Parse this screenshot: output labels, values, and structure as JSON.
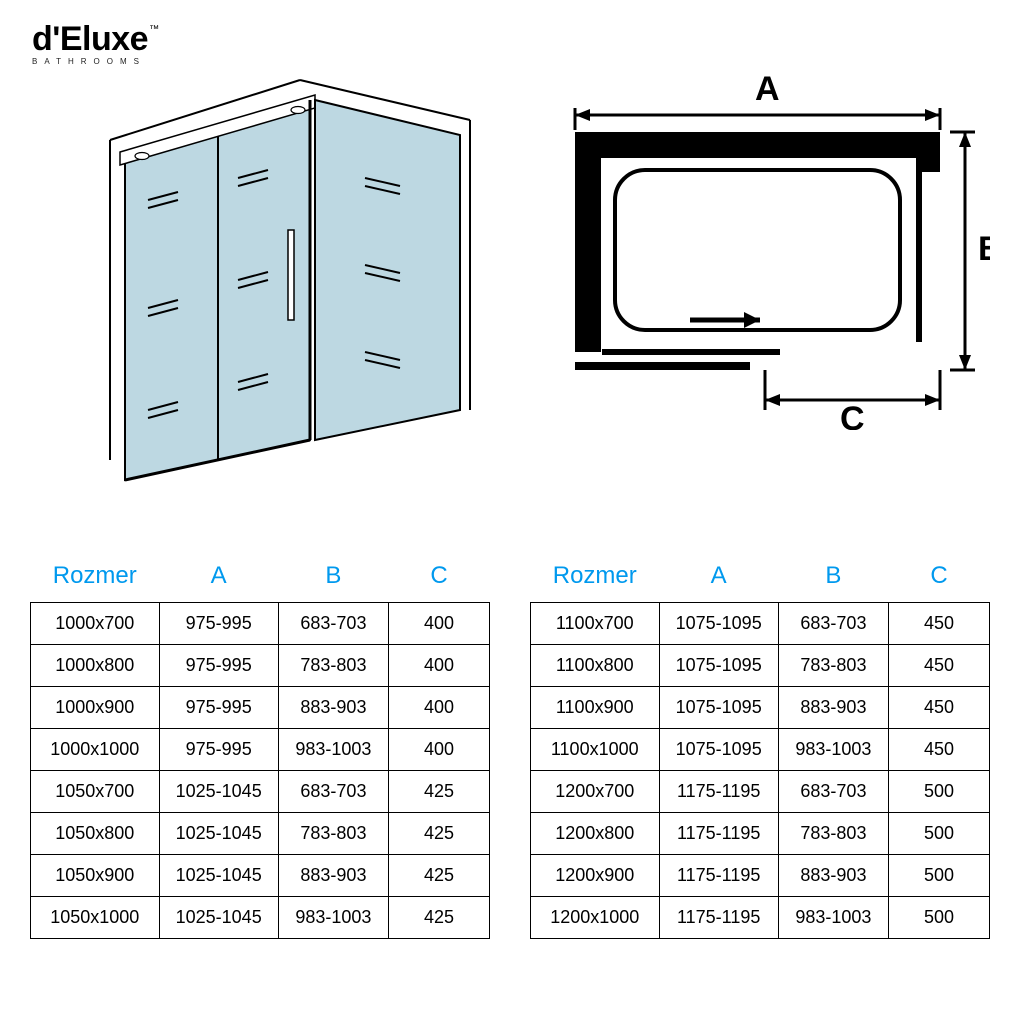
{
  "brand": {
    "name": "d'Eluxe",
    "tm": "™",
    "subtitle": "BATHROOMS"
  },
  "diagram_labels": {
    "A": "A",
    "B": "B",
    "C": "C"
  },
  "header_color": "#0099ee",
  "table_headers": [
    "Rozmer",
    "A",
    "B",
    "C"
  ],
  "table_left": [
    [
      "1000x700",
      "975-995",
      "683-703",
      "400"
    ],
    [
      "1000x800",
      "975-995",
      "783-803",
      "400"
    ],
    [
      "1000x900",
      "975-995",
      "883-903",
      "400"
    ],
    [
      "1000x1000",
      "975-995",
      "983-1003",
      "400"
    ],
    [
      "1050x700",
      "1025-1045",
      "683-703",
      "425"
    ],
    [
      "1050x800",
      "1025-1045",
      "783-803",
      "425"
    ],
    [
      "1050x900",
      "1025-1045",
      "883-903",
      "425"
    ],
    [
      "1050x1000",
      "1025-1045",
      "983-1003",
      "425"
    ]
  ],
  "table_right": [
    [
      "1100x700",
      "1075-1095",
      "683-703",
      "450"
    ],
    [
      "1100x800",
      "1075-1095",
      "783-803",
      "450"
    ],
    [
      "1100x900",
      "1075-1095",
      "883-903",
      "450"
    ],
    [
      "1100x1000",
      "1075-1095",
      "983-1003",
      "450"
    ],
    [
      "1200x700",
      "1175-1195",
      "683-703",
      "500"
    ],
    [
      "1200x800",
      "1175-1195",
      "783-803",
      "500"
    ],
    [
      "1200x900",
      "1175-1195",
      "883-903",
      "500"
    ],
    [
      "1200x1000",
      "1175-1195",
      "983-1003",
      "500"
    ]
  ],
  "glass_color": "#bdd8e2",
  "line_color": "#000000",
  "bg_color": "#ffffff"
}
